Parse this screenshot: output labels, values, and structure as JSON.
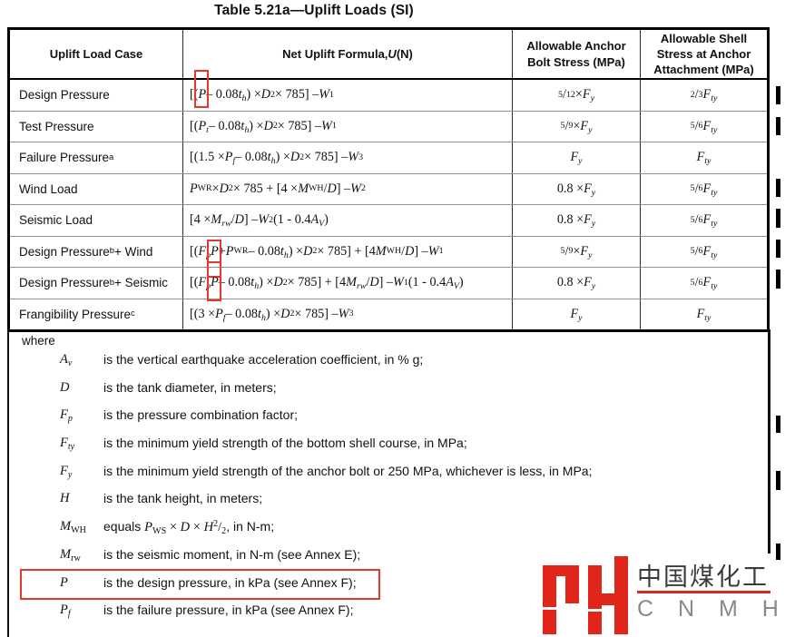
{
  "title": "Table 5.21a—Uplift Loads (SI)",
  "annotation_color": "#e8362a",
  "table": {
    "headers": {
      "case": "Uplift Load Case",
      "formula": "Net Uplift Formula, <i>U</i> (N)",
      "bolt": "Allowable Anchor Bolt Stress (MPa)",
      "shell": "Allowable Shell Stress at Anchor Attachment (MPa)"
    },
    "rows": [
      {
        "case": "Design Pressure",
        "formula": "[(<span class=\"rb rb1\"><i>P</i></span> – 0.08<i>t<sub>h</sub></i>) × <i>D</i><sup>2</sup> × 785] – <i>W</i><sub>1</sub>",
        "bolt": "<sup>5</sup>/<sub>12</sub> × <i>F<sub>y</sub></i>",
        "shell": "<sup>2</sup>/<sub>3</sub> <i>F<sub>ty</sub></i>",
        "changed": true
      },
      {
        "case": "Test Pressure",
        "formula": "[(<i>P<sub>t</sub></i> – 0.08<i>t<sub>h</sub></i>) × <i>D</i><sup>2</sup> × 785] – <i>W</i><sub>1</sub>",
        "bolt": "<sup>5</sup>/<sub>9</sub> × <i>F<sub>y</sub></i>",
        "shell": "<sup>5</sup>/<sub>6</sub> <i>F<sub>ty</sub></i>",
        "changed": true
      },
      {
        "case": "Failure Pressure<sup>a</sup>",
        "formula": "[(1.5 × <i>P<sub>f</sub></i> – 0.08<i>t<sub>h</sub></i>) × <i>D</i><sup>2</sup> × 785] – <i>W</i><sub>3</sub>",
        "bolt": "<i>F<sub>y</sub></i>",
        "shell": "<i>F<sub>ty</sub></i>",
        "changed": false
      },
      {
        "case": "Wind Load",
        "formula": "<i>P</i><sub>WR</sub> × <i>D</i><sup>2</sup> × 785 + [4 × <i>M</i><sub>WH</sub>/<i>D</i>] – <i>W</i><sub>2</sub>",
        "bolt": "0.8 × <i>F<sub>y</sub></i>",
        "shell": "<sup>5</sup>/<sub>6</sub> <i>F<sub>ty</sub></i>",
        "changed": true
      },
      {
        "case": "Seismic Load",
        "formula": "[4 × <i>M<sub>rw</sub></i>/<i>D</i>] – <i>W</i><sub>2</sub> (1 - 0.4<i>A<sub>V</sub></i>)",
        "bolt": "0.8 × <i>F<sub>y</sub></i>",
        "shell": "<sup>5</sup>/<sub>6</sub> <i>F<sub>ty</sub></i>",
        "changed": true
      },
      {
        "case": "Design Pressure<sup>b</sup> + Wind",
        "formula": "[(<i>F<sub>p</sub></i> <span class=\"rb rb6\"><i>P</i></span> + <i>P</i><sub>WR</sub> – 0.08<i>t<sub>h</sub></i>) × <i>D</i><sup>2</sup> × 785] + [4 <i>M</i><sub>WH</sub>/<i>D</i>] – <i>W</i><sub>1</sub>",
        "bolt": "<sup>5</sup>/<sub>9</sub> × <i>F<sub>y</sub></i>",
        "shell": "<sup>5</sup>/<sub>6</sub> <i>F<sub>ty</sub></i>",
        "changed": true
      },
      {
        "case": "Design Pressure<sup>b</sup> + Seismic",
        "formula": "[(<i>F<sub>p</sub></i> <span class=\"rb rb7\"><i>P</i></span> – 0.08<i>t<sub>h</sub></i>) × <i>D</i><sup>2</sup> × 785] + [4 <i>M<sub>rw</sub></i>/<i>D</i>] – <i>W</i><sub>1</sub> (1 - 0.4<i>A<sub>V</sub></i>)",
        "bolt": "0.8 × <i>F<sub>y</sub></i>",
        "shell": "<sup>5</sup>/<sub>6</sub> <i>F<sub>ty</sub></i>",
        "changed": true
      },
      {
        "case": "Frangibility Pressure<sup>c</sup>",
        "formula": "[(3 × <i>P<sub>f</sub></i> – 0.08<i>t<sub>h</sub></i>) × <i>D</i><sup>2</sup> × 785] – <i>W</i><sub>3</sub>",
        "bolt": "<i>F<sub>y</sub></i>",
        "shell": "<i>F<sub>ty</sub></i>",
        "changed": false
      }
    ]
  },
  "where": {
    "label": "where",
    "items": [
      {
        "sym": "<i>A<sub>v</sub></i>",
        "desc": "is the vertical earthquake acceleration coefficient, in % g;",
        "boxed": false,
        "changed": false
      },
      {
        "sym": "<i>D</i>",
        "desc": "is the tank diameter, in meters;",
        "boxed": false,
        "changed": false
      },
      {
        "sym": "<i>F<sub>p</sub></i>",
        "desc": "is the pressure combination factor;",
        "boxed": false,
        "changed": true
      },
      {
        "sym": "<i>F<sub>ty</sub></i>",
        "desc": "is the minimum yield strength of the bottom shell course, in MPa;",
        "boxed": false,
        "changed": false
      },
      {
        "sym": "<i>F<sub>y</sub></i>",
        "desc": "is the minimum yield strength of the anchor bolt or 250 MPa, whichever is less, in MPa;",
        "boxed": false,
        "changed": true
      },
      {
        "sym": "<i>H</i>",
        "desc": "is the tank height, in meters;",
        "boxed": false,
        "changed": false
      },
      {
        "sym": "<i>M</i><sub>WH</sub>",
        "desc": "equals <span class=\"math\"><i>P</i><sub>WS</sub> × <i>D</i> × <i>H</i><sup>2</sup>/<sub>2</sub></span>, in N-m;",
        "boxed": false,
        "changed": false
      },
      {
        "sym": "<i>M</i><sub>rw</sub>",
        "desc": "is the seismic moment, in N-m (see Annex E);",
        "boxed": false,
        "changed": true
      },
      {
        "sym": "<i>P</i>",
        "desc": "is the design pressure, in kPa (see Annex F);",
        "boxed": true,
        "changed": false
      },
      {
        "sym": "<i>P<sub>f</sub></i>",
        "desc": "is the failure pressure, in kPa (see Annex F);",
        "boxed": false,
        "changed": false
      }
    ]
  },
  "watermark": {
    "monogram": "MH",
    "cn": "中国煤化工",
    "en": "C N M H G",
    "red": "#e0251b"
  }
}
